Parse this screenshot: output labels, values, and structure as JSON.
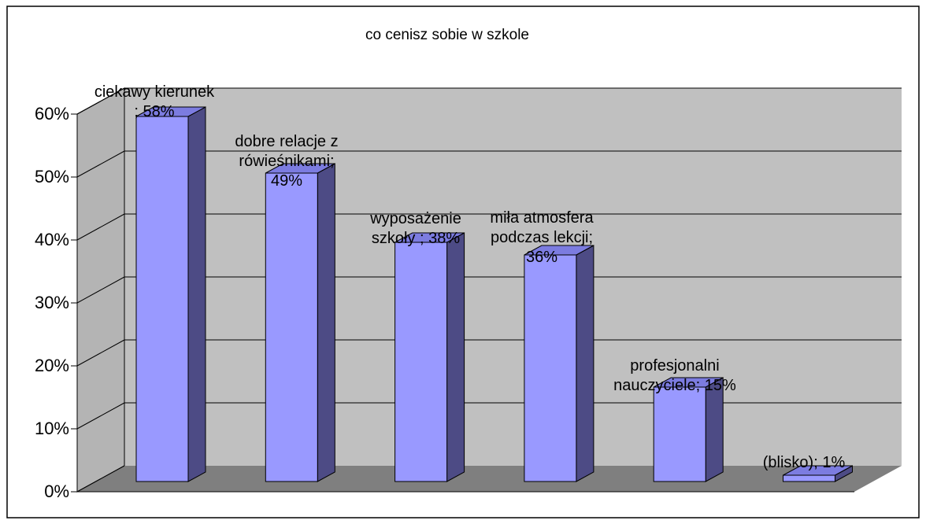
{
  "chart_data": {
    "type": "bar",
    "title": "co cenisz sobie w szkole",
    "xlabel": "",
    "ylabel": "",
    "ylim": [
      0,
      0.6
    ],
    "y_ticks": [
      "0%",
      "10%",
      "20%",
      "30%",
      "40%",
      "50%",
      "60%"
    ],
    "three_d": true,
    "grid": true,
    "legend": "none",
    "categories": [
      "ciekawy kierunek",
      "dobre relacje z rówieśnikami",
      "wyposażenie szkoły",
      "miła atmosfera podczas lekcji",
      "profesjonalni nauczyciele",
      "(blisko)"
    ],
    "values": [
      0.58,
      0.49,
      0.38,
      0.36,
      0.15,
      0.01
    ],
    "data_labels": [
      [
        "ciekawy kierunek",
        "; 58%"
      ],
      [
        "dobre relacje z",
        "rówieśnikami;",
        "49%"
      ],
      [
        "wyposażenie",
        "szkoły ; 38%"
      ],
      [
        "miła atmosfera",
        "podczas lekcji;",
        "36%"
      ],
      [
        "profesjonalni",
        "nauczyciele; 15%"
      ],
      [
        "(blisko); 1%"
      ]
    ],
    "colors": {
      "bar_front": "#9999ff",
      "bar_side": "#4d4b85",
      "bar_top": "#7c7ce0",
      "back_wall": "#c0c0c0",
      "side_wall": "#b4b4b4",
      "floor": "#7f7f7f",
      "grid": "#000000"
    }
  }
}
